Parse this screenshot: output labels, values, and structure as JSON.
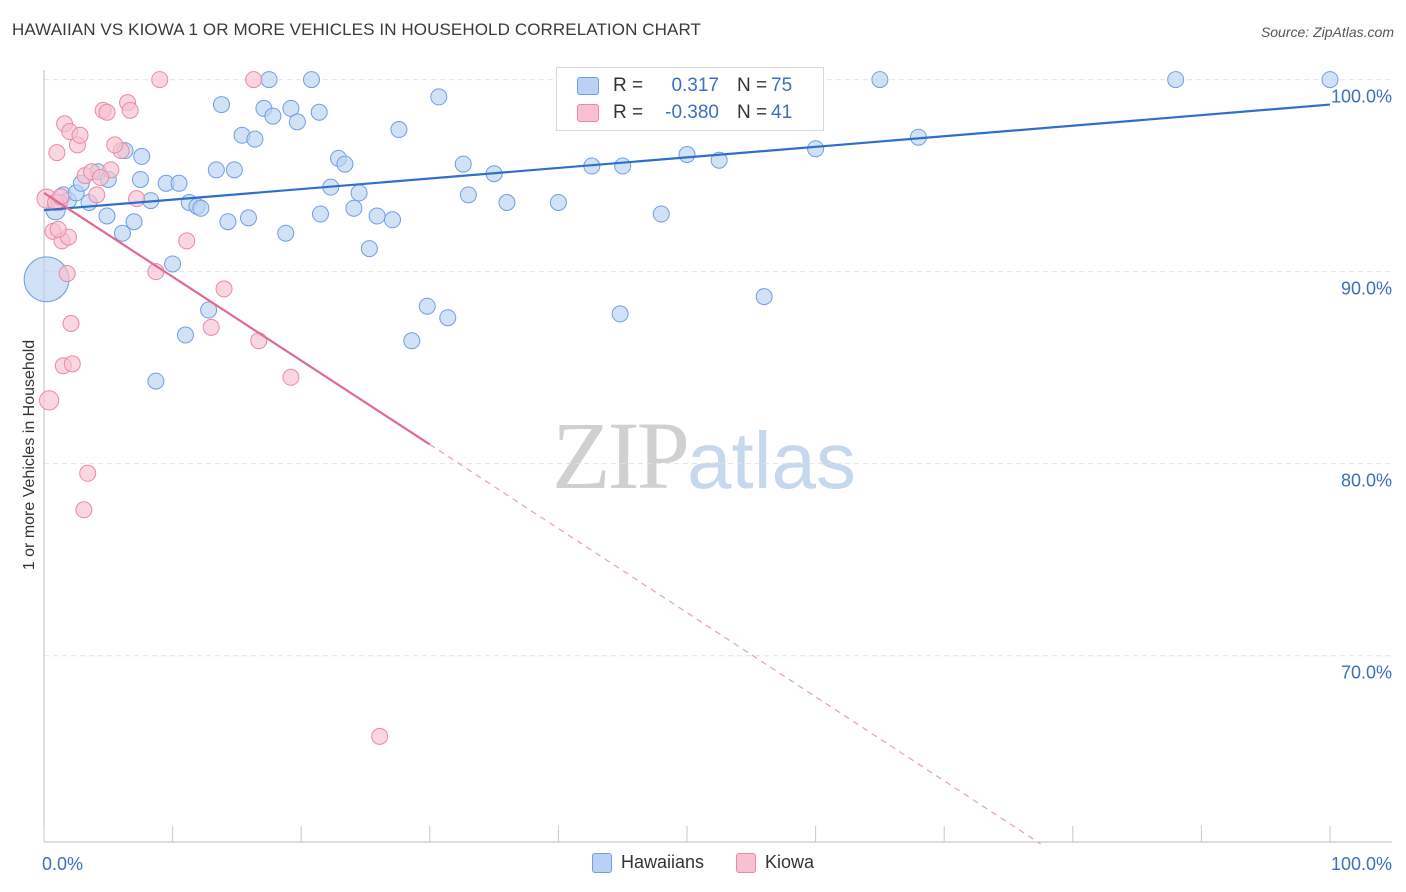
{
  "title": "HAWAIIAN VS KIOWA 1 OR MORE VEHICLES IN HOUSEHOLD CORRELATION CHART",
  "source": "Source: ZipAtlas.com",
  "watermark": {
    "zip": "ZIP",
    "atlas": "atlas"
  },
  "legend": {
    "r_label": "R =",
    "n_label": "N =",
    "rows": [
      {
        "r": "0.317",
        "n": "75",
        "color": "#b9d2f3",
        "border": "#6f9fe0"
      },
      {
        "r": "-0.380",
        "n": "41",
        "color": "#f8c0d0",
        "border": "#e88aa6"
      }
    ]
  },
  "chart_data": {
    "type": "scatter",
    "xlabel": "",
    "ylabel": "1 or more Vehicles in Household",
    "xlim": [
      0,
      100
    ],
    "ylim": [
      60.3,
      100.5
    ],
    "x_tick_labels": [
      {
        "value": 0,
        "label": "0.0%"
      },
      {
        "value": 100,
        "label": "100.0%"
      }
    ],
    "y_tick_labels": [
      {
        "value": 100,
        "label": "100.0%"
      },
      {
        "value": 90,
        "label": "90.0%"
      },
      {
        "value": 80,
        "label": "80.0%"
      },
      {
        "value": 70,
        "label": "70.0%"
      }
    ],
    "grid": "horizontal dashed",
    "legend_position": "top-center",
    "series": [
      {
        "name": "Hawaiians",
        "color": "#6f9fe0",
        "fill": "#b9d2f3",
        "trend": {
          "x": [
            0,
            100
          ],
          "y": [
            93.2,
            98.7
          ],
          "style": "solid"
        },
        "points": [
          [
            0.2,
            89.6,
            28
          ],
          [
            0.9,
            93.2,
            12
          ],
          [
            1.5,
            94.0,
            10
          ],
          [
            1.9,
            93.7,
            10
          ],
          [
            2.5,
            94.1,
            10
          ],
          [
            2.9,
            94.6,
            10
          ],
          [
            3.5,
            93.6,
            10
          ],
          [
            4.2,
            95.2,
            10
          ],
          [
            5.0,
            94.8,
            10
          ],
          [
            4.9,
            92.9,
            10
          ],
          [
            6.1,
            92.0,
            10
          ],
          [
            6.3,
            96.3,
            10
          ],
          [
            7.0,
            92.6,
            10
          ],
          [
            7.6,
            96.0,
            10
          ],
          [
            7.5,
            94.8,
            10
          ],
          [
            8.3,
            93.7,
            10
          ],
          [
            8.7,
            84.3,
            10
          ],
          [
            9.5,
            94.6,
            10
          ],
          [
            10.0,
            90.4,
            10
          ],
          [
            10.5,
            94.6,
            10
          ],
          [
            11.0,
            86.7,
            10
          ],
          [
            11.3,
            93.6,
            10
          ],
          [
            11.9,
            93.4,
            10
          ],
          [
            12.2,
            93.3,
            10
          ],
          [
            12.8,
            88.0,
            10
          ],
          [
            13.4,
            95.3,
            10
          ],
          [
            13.8,
            98.7,
            10
          ],
          [
            14.3,
            92.6,
            10
          ],
          [
            14.8,
            95.3,
            10
          ],
          [
            15.4,
            97.1,
            10
          ],
          [
            15.9,
            92.8,
            10
          ],
          [
            16.4,
            96.9,
            10
          ],
          [
            17.1,
            98.5,
            10
          ],
          [
            17.5,
            100.0,
            10
          ],
          [
            17.8,
            98.1,
            10
          ],
          [
            18.8,
            92.0,
            10
          ],
          [
            19.2,
            98.5,
            10
          ],
          [
            19.7,
            97.8,
            10
          ],
          [
            20.8,
            100.0,
            10
          ],
          [
            21.4,
            98.3,
            10
          ],
          [
            21.5,
            93.0,
            10
          ],
          [
            22.3,
            94.4,
            10
          ],
          [
            22.9,
            95.9,
            10
          ],
          [
            23.4,
            95.6,
            10
          ],
          [
            24.1,
            93.3,
            10
          ],
          [
            24.5,
            94.1,
            10
          ],
          [
            25.3,
            91.2,
            10
          ],
          [
            25.9,
            92.9,
            10
          ],
          [
            27.1,
            92.7,
            10
          ],
          [
            27.6,
            97.4,
            10
          ],
          [
            28.6,
            86.4,
            10
          ],
          [
            29.8,
            88.2,
            10
          ],
          [
            30.7,
            99.1,
            10
          ],
          [
            31.4,
            87.6,
            10
          ],
          [
            32.6,
            95.6,
            10
          ],
          [
            33.0,
            94.0,
            10
          ],
          [
            35.0,
            95.1,
            10
          ],
          [
            36.0,
            93.6,
            10
          ],
          [
            40.0,
            93.6,
            10
          ],
          [
            42.6,
            95.5,
            10
          ],
          [
            45.0,
            95.5,
            10
          ],
          [
            46.7,
            100.0,
            10
          ],
          [
            48.0,
            93.0,
            10
          ],
          [
            50.0,
            96.1,
            10
          ],
          [
            50.5,
            100.0,
            10
          ],
          [
            56.0,
            88.7,
            10
          ],
          [
            60.0,
            96.4,
            10
          ],
          [
            65.0,
            100.0,
            10
          ],
          [
            68.0,
            97.0,
            10
          ],
          [
            88.0,
            100.0,
            10
          ],
          [
            100.0,
            100.0,
            10
          ],
          [
            47.6,
            100.0,
            10
          ],
          [
            56.4,
            97.8,
            10
          ],
          [
            44.8,
            87.8,
            10
          ],
          [
            52.5,
            95.8,
            10
          ]
        ]
      },
      {
        "name": "Kiowa",
        "color": "#e88aa6",
        "fill": "#f8c0d0",
        "trend": {
          "x": [
            0,
            30
          ],
          "y": [
            94.1,
            81.0
          ],
          "style": "solid",
          "extend_to": [
            77.5,
            60.2
          ],
          "extend_style": "dashed"
        },
        "points": [
          [
            0.2,
            93.8,
            12
          ],
          [
            0.4,
            83.3,
            12
          ],
          [
            0.7,
            92.1,
            10
          ],
          [
            1.0,
            96.2,
            10
          ],
          [
            1.2,
            93.6,
            10
          ],
          [
            1.4,
            91.6,
            10
          ],
          [
            1.5,
            85.1,
            10
          ],
          [
            1.6,
            97.7,
            10
          ],
          [
            1.9,
            91.8,
            10
          ],
          [
            2.0,
            97.3,
            10
          ],
          [
            1.8,
            89.9,
            10
          ],
          [
            2.1,
            87.3,
            10
          ],
          [
            2.2,
            85.2,
            10
          ],
          [
            2.6,
            96.6,
            10
          ],
          [
            2.8,
            97.1,
            10
          ],
          [
            3.1,
            77.6,
            10
          ],
          [
            3.2,
            95.0,
            10
          ],
          [
            3.4,
            79.5,
            10
          ],
          [
            3.7,
            95.2,
            10
          ],
          [
            4.1,
            94.0,
            10
          ],
          [
            4.6,
            98.4,
            10
          ],
          [
            4.9,
            98.3,
            10
          ],
          [
            5.2,
            95.3,
            10
          ],
          [
            6.0,
            96.3,
            10
          ],
          [
            6.5,
            98.8,
            10
          ],
          [
            6.7,
            98.4,
            10
          ],
          [
            7.2,
            93.8,
            10
          ],
          [
            8.7,
            90.0,
            10
          ],
          [
            9.0,
            100.0,
            10
          ],
          [
            11.1,
            91.6,
            10
          ],
          [
            13.0,
            87.1,
            10
          ],
          [
            14.0,
            89.1,
            10
          ],
          [
            16.3,
            100.0,
            10
          ],
          [
            16.7,
            86.4,
            10
          ],
          [
            19.2,
            84.5,
            10
          ],
          [
            26.1,
            65.8,
            10
          ],
          [
            0.9,
            93.6,
            10
          ],
          [
            1.3,
            93.9,
            10
          ],
          [
            4.4,
            94.9,
            10
          ],
          [
            5.5,
            96.6,
            10
          ],
          [
            1.1,
            92.2,
            10
          ]
        ]
      }
    ]
  }
}
